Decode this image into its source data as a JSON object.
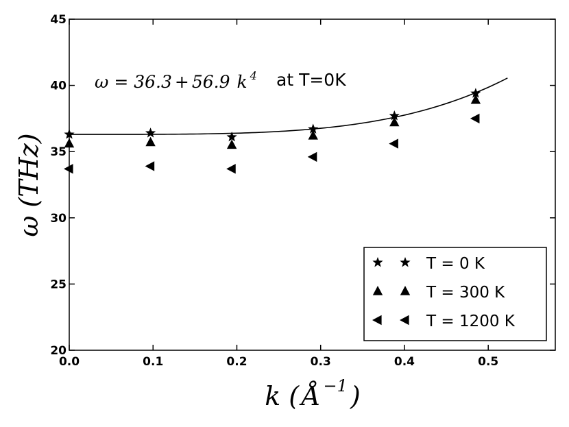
{
  "chart_data": {
    "type": "scatter",
    "xlim": [
      0.0,
      0.58
    ],
    "ylim": [
      20,
      45
    ],
    "xticks": [
      "0.0",
      "0.1",
      "0.2",
      "0.3",
      "0.4",
      "0.5"
    ],
    "yticks": [
      "20",
      "25",
      "30",
      "35",
      "40",
      "45"
    ],
    "xlabel": {
      "symbol": "k",
      "unit_open": "(",
      "unit": "Å",
      "unit_exp": "−1",
      "unit_close": ")"
    },
    "ylabel": {
      "symbol": "ω",
      "unit": "(THz)"
    },
    "grid": false,
    "legend_position": "bottom-right",
    "annotation": {
      "formula_lhs": "ω = 36.3",
      "formula_plus": "+",
      "formula_coef": "56.9",
      "formula_var": "k",
      "formula_exp": "4",
      "suffix": "at T=0K"
    },
    "fit_curve": {
      "a": 36.3,
      "b": 56.9,
      "power": 4,
      "x_start": 0.0,
      "x_end": 0.523,
      "color": "#000000"
    },
    "series": [
      {
        "name": "T = 0 K",
        "marker": "star",
        "x": [
          0.0,
          0.097,
          0.194,
          0.291,
          0.388,
          0.485
        ],
        "y": [
          36.3,
          36.4,
          36.1,
          36.7,
          37.7,
          39.4
        ]
      },
      {
        "name": "T = 300 K",
        "marker": "triangle-up",
        "x": [
          0.0,
          0.097,
          0.194,
          0.291,
          0.388,
          0.485
        ],
        "y": [
          35.6,
          35.7,
          35.5,
          36.2,
          37.2,
          38.9
        ]
      },
      {
        "name": "T = 1200 K",
        "marker": "triangle-left",
        "x": [
          0.0,
          0.097,
          0.194,
          0.291,
          0.388,
          0.485
        ],
        "y": [
          33.7,
          33.9,
          33.7,
          34.6,
          35.6,
          37.5
        ]
      }
    ]
  }
}
